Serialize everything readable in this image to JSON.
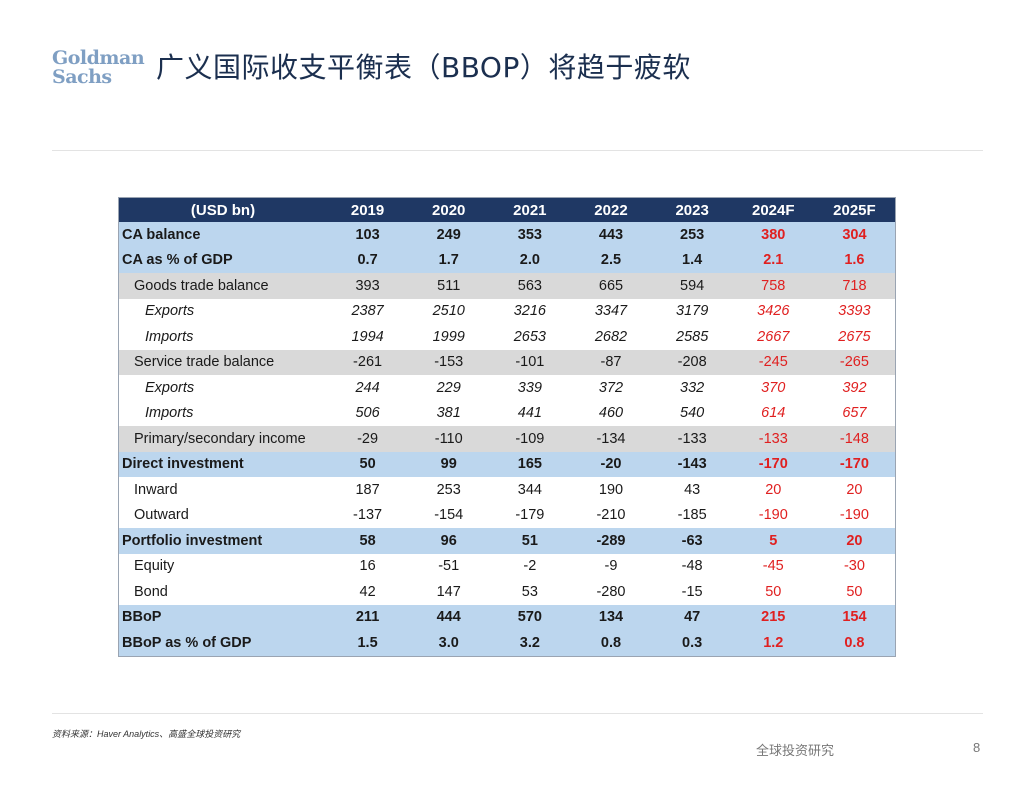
{
  "logo": {
    "line1": "Goldman",
    "line2": "Sachs"
  },
  "title": "广义国际收支平衡表（BBOP）将趋于疲软",
  "table": {
    "headers": [
      "(USD bn)",
      "2019",
      "2020",
      "2021",
      "2022",
      "2023",
      "2024F",
      "2025F"
    ],
    "rows": [
      {
        "style": "main",
        "label": "CA balance",
        "values": [
          "103",
          "249",
          "353",
          "443",
          "253",
          "380",
          "304"
        ]
      },
      {
        "style": "main",
        "label": "CA as % of GDP",
        "values": [
          "0.7",
          "1.7",
          "2.0",
          "2.5",
          "1.4",
          "2.1",
          "1.6"
        ]
      },
      {
        "style": "sub",
        "label": "Goods trade balance",
        "values": [
          "393",
          "511",
          "563",
          "665",
          "594",
          "758",
          "718"
        ]
      },
      {
        "style": "italic",
        "label": "Exports",
        "values": [
          "2387",
          "2510",
          "3216",
          "3347",
          "3179",
          "3426",
          "3393"
        ]
      },
      {
        "style": "italic",
        "label": "Imports",
        "values": [
          "1994",
          "1999",
          "2653",
          "2682",
          "2585",
          "2667",
          "2675"
        ]
      },
      {
        "style": "sub",
        "label": "Service trade balance",
        "values": [
          "-261",
          "-153",
          "-101",
          "-87",
          "-208",
          "-245",
          "-265"
        ]
      },
      {
        "style": "italic",
        "label": "Exports",
        "values": [
          "244",
          "229",
          "339",
          "372",
          "332",
          "370",
          "392"
        ]
      },
      {
        "style": "italic",
        "label": "Imports",
        "values": [
          "506",
          "381",
          "441",
          "460",
          "540",
          "614",
          "657"
        ]
      },
      {
        "style": "sub",
        "label": "Primary/secondary income",
        "values": [
          "-29",
          "-110",
          "-109",
          "-134",
          "-133",
          "-133",
          "-148"
        ]
      },
      {
        "style": "main",
        "label": "Direct investment",
        "values": [
          "50",
          "99",
          "165",
          "-20",
          "-143",
          "-170",
          "-170"
        ]
      },
      {
        "style": "plain",
        "label": "Inward",
        "values": [
          "187",
          "253",
          "344",
          "190",
          "43",
          "20",
          "20"
        ]
      },
      {
        "style": "plain",
        "label": "Outward",
        "values": [
          "-137",
          "-154",
          "-179",
          "-210",
          "-185",
          "-190",
          "-190"
        ]
      },
      {
        "style": "main",
        "label": "Portfolio investment",
        "values": [
          "58",
          "96",
          "51",
          "-289",
          "-63",
          "5",
          "20"
        ]
      },
      {
        "style": "plain",
        "label": "Equity",
        "values": [
          "16",
          "-51",
          "-2",
          "-9",
          "-48",
          "-45",
          "-30"
        ]
      },
      {
        "style": "plain",
        "label": "Bond",
        "values": [
          "42",
          "147",
          "53",
          "-280",
          "-15",
          "50",
          "50"
        ]
      },
      {
        "style": "main",
        "label": "BBoP",
        "values": [
          "211",
          "444",
          "570",
          "134",
          "47",
          "215",
          "154"
        ]
      },
      {
        "style": "main",
        "label": "BBoP as % of GDP",
        "values": [
          "1.5",
          "3.0",
          "3.2",
          "0.8",
          "0.3",
          "1.2",
          "0.8"
        ]
      }
    ]
  },
  "source": "资料来源：Haver Analytics、高盛全球投资研究",
  "footer": {
    "label": "全球投资研究",
    "page": "8"
  },
  "colors": {
    "header_bg": "#1f3864",
    "main_row_bg": "#bcd6ee",
    "sub_row_bg": "#d9d9d9",
    "forecast_text": "#e02020"
  }
}
